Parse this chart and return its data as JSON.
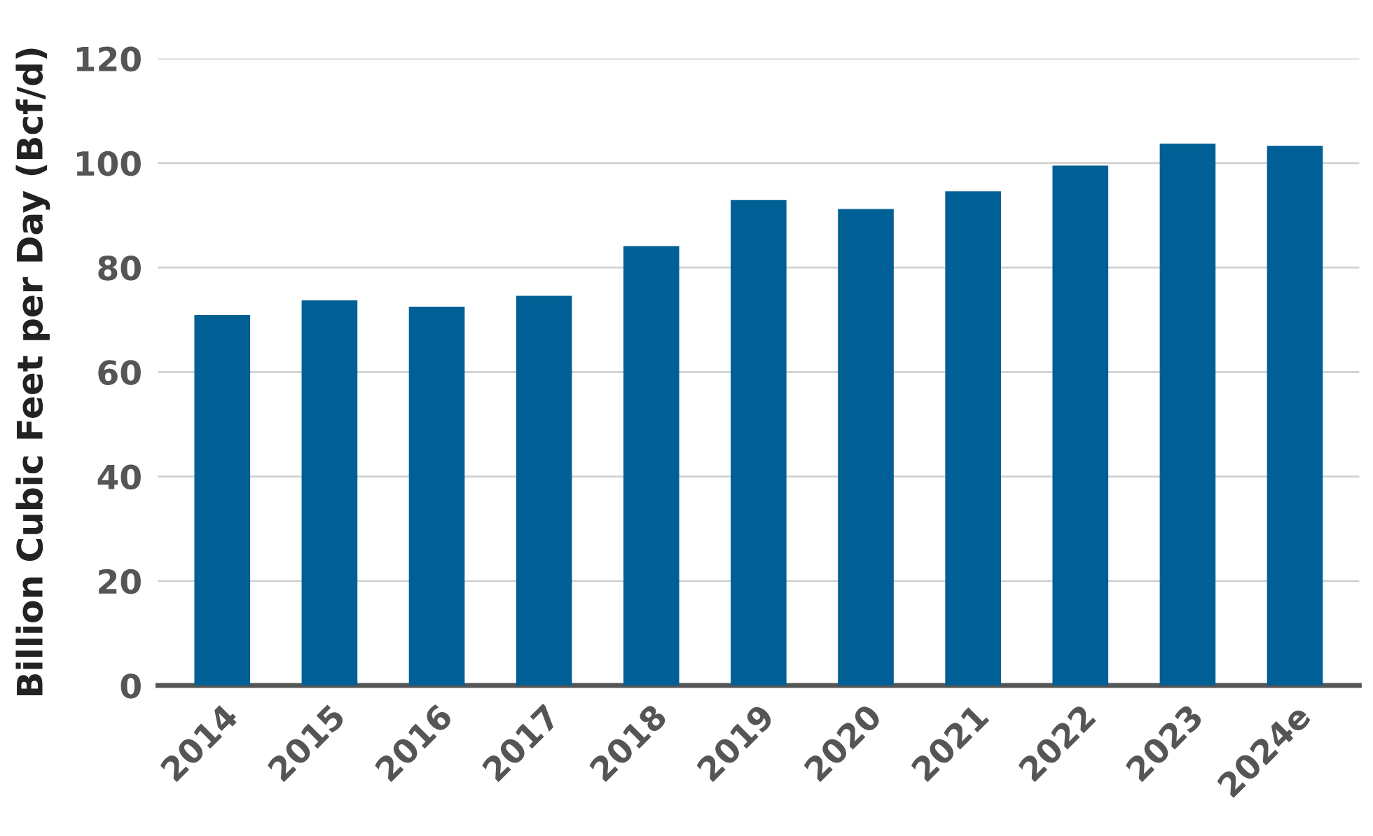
{
  "chart_data": {
    "type": "bar",
    "ylabel": "Billion Cubic Feet per Day (Bcf/d)",
    "categories": [
      "2014",
      "2015",
      "2016",
      "2017",
      "2018",
      "2019",
      "2020",
      "2021",
      "2022",
      "2023",
      "2024e"
    ],
    "values": [
      70.9,
      73.7,
      72.5,
      74.6,
      84.1,
      92.9,
      91.2,
      94.6,
      99.5,
      103.7,
      103.3
    ],
    "color": "#005f94",
    "ylim": [
      0,
      120
    ],
    "yticks": [
      0,
      20,
      40,
      60,
      80,
      100,
      120
    ],
    "grid": "y"
  }
}
